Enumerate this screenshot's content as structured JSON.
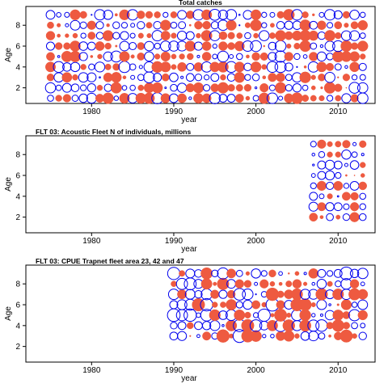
{
  "colors": {
    "positive": "#0000ee",
    "negative": "#ee5a40",
    "axis": "#000000"
  },
  "chart_data": [
    {
      "type": "scatter",
      "title": "Total catches",
      "xlabel": "year",
      "ylabel": "Age",
      "x_range": [
        1972,
        2014.5
      ],
      "y_range": [
        0.5,
        9.8
      ],
      "xticks": [
        1980,
        1990,
        2000,
        2010
      ],
      "yticks": [
        2,
        4,
        6,
        8
      ],
      "ages": [
        1,
        2,
        3,
        4,
        5,
        6,
        7,
        8,
        9
      ],
      "years": [
        1975,
        2013
      ],
      "pattern_seed": 11,
      "max_radius": 7
    },
    {
      "type": "scatter",
      "title": "FLT 03: Acoustic Fleet   N of individuals, millions",
      "xlabel": "year",
      "ylabel": "Age",
      "x_range": [
        1972,
        2014.5
      ],
      "y_range": [
        0.5,
        9.8
      ],
      "xticks": [
        1980,
        1990,
        2000,
        2010
      ],
      "yticks": [
        2,
        4,
        6,
        8
      ],
      "ages": [
        2,
        3,
        4,
        5,
        6,
        7,
        8,
        9
      ],
      "years": [
        2007,
        2013
      ],
      "pattern_seed": 23,
      "max_radius": 6
    },
    {
      "type": "scatter",
      "title": "FLT 03: CPUE Trapnet fleet area 23, 42 and 47",
      "xlabel": "year",
      "ylabel": "Age",
      "x_range": [
        1972,
        2014.5
      ],
      "y_range": [
        0.5,
        9.8
      ],
      "xticks": [
        1980,
        1990,
        2000,
        2010
      ],
      "yticks": [
        2,
        4,
        6,
        8
      ],
      "ages": [
        3,
        4,
        5,
        6,
        7,
        8,
        9
      ],
      "years": [
        1990,
        2013
      ],
      "pattern_seed": 37,
      "max_radius": 8
    }
  ]
}
